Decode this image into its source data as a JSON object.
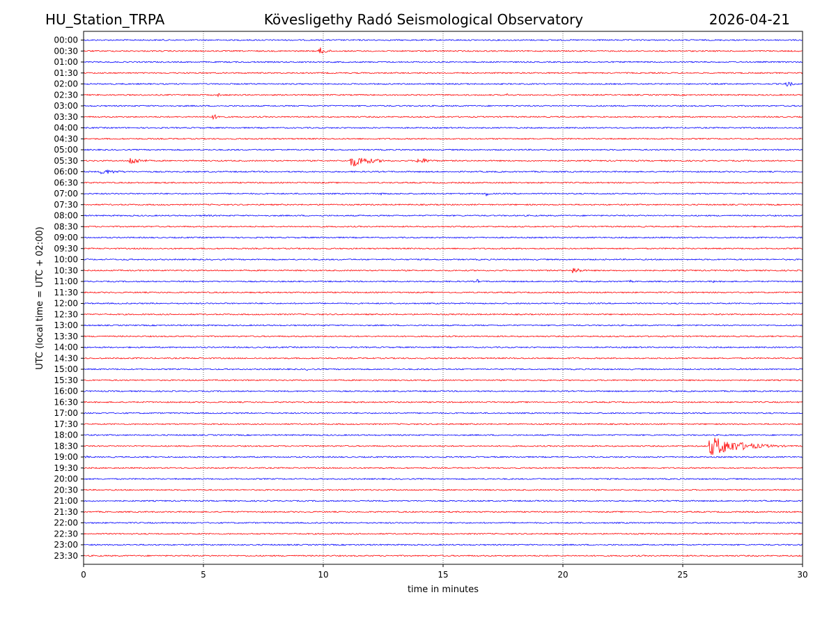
{
  "header": {
    "station": "HU_Station_TRPA",
    "observatory": "Kövesligethy Radó Seismological Observatory",
    "date": "2026-04-21"
  },
  "chart_data": {
    "type": "line",
    "title": "Kövesligethy Radó Seismological Observatory",
    "xlabel": "time in minutes",
    "ylabel": "UTC (local time = UTC + 02:00)",
    "xlim": [
      0,
      30
    ],
    "xticks": [
      "0",
      "5",
      "10",
      "15",
      "20",
      "25",
      "30"
    ],
    "vertical_gridlines_at": [
      5,
      10,
      15,
      20,
      25
    ],
    "grid_style": "dotted",
    "series_colors": [
      "#0000ff",
      "#ff0000"
    ],
    "rows": [
      "00:00",
      "00:30",
      "01:00",
      "01:30",
      "02:00",
      "02:30",
      "03:00",
      "03:30",
      "04:00",
      "04:30",
      "05:00",
      "05:30",
      "06:00",
      "06:30",
      "07:00",
      "07:30",
      "08:00",
      "08:30",
      "09:00",
      "09:30",
      "10:00",
      "10:30",
      "11:00",
      "11:30",
      "12:00",
      "12:30",
      "13:00",
      "13:30",
      "14:00",
      "14:30",
      "15:00",
      "15:30",
      "16:00",
      "16:30",
      "17:00",
      "17:30",
      "18:00",
      "18:30",
      "19:00",
      "19:30",
      "20:00",
      "20:30",
      "21:00",
      "21:30",
      "22:00",
      "22:30",
      "23:00",
      "23:30"
    ],
    "events": [
      {
        "row": "00:00",
        "start_min": 3.3,
        "duration_min": 1.0,
        "amplitude": 1.2
      },
      {
        "row": "00:00",
        "start_min": 26.5,
        "duration_min": 0.6,
        "amplitude": 1.2
      },
      {
        "row": "00:30",
        "start_min": 9.8,
        "duration_min": 1.0,
        "amplitude": 5.5
      },
      {
        "row": "02:00",
        "start_min": 6.7,
        "duration_min": 0.4,
        "amplitude": 1.5
      },
      {
        "row": "02:00",
        "start_min": 29.3,
        "duration_min": 0.7,
        "amplitude": 5.0
      },
      {
        "row": "02:30",
        "start_min": 0.0,
        "duration_min": 0.4,
        "amplitude": 2.0
      },
      {
        "row": "02:30",
        "start_min": 5.6,
        "duration_min": 0.5,
        "amplitude": 3.0
      },
      {
        "row": "02:30",
        "start_min": 17.6,
        "duration_min": 0.5,
        "amplitude": 2.5
      },
      {
        "row": "03:30",
        "start_min": 5.3,
        "duration_min": 1.5,
        "amplitude": 3.5
      },
      {
        "row": "05:30",
        "start_min": 1.9,
        "duration_min": 1.5,
        "amplitude": 5.5
      },
      {
        "row": "05:30",
        "start_min": 11.1,
        "duration_min": 2.5,
        "amplitude": 8.0
      },
      {
        "row": "05:30",
        "start_min": 13.9,
        "duration_min": 1.8,
        "amplitude": 4.0
      },
      {
        "row": "06:00",
        "start_min": 0.7,
        "duration_min": 2.5,
        "amplitude": 3.5
      },
      {
        "row": "07:00",
        "start_min": 12.4,
        "duration_min": 0.4,
        "amplitude": 5.0
      },
      {
        "row": "07:00",
        "start_min": 16.8,
        "duration_min": 0.3,
        "amplitude": 5.0
      },
      {
        "row": "08:00",
        "start_min": 5.0,
        "duration_min": 1.5,
        "amplitude": 1.6
      },
      {
        "row": "10:00",
        "start_min": 1.8,
        "duration_min": 0.8,
        "amplitude": 1.4
      },
      {
        "row": "10:30",
        "start_min": 20.4,
        "duration_min": 1.0,
        "amplitude": 5.0
      },
      {
        "row": "11:00",
        "start_min": 16.4,
        "duration_min": 0.3,
        "amplitude": 3.5
      },
      {
        "row": "11:00",
        "start_min": 22.8,
        "duration_min": 0.5,
        "amplitude": 2.0
      },
      {
        "row": "11:00",
        "start_min": 26.2,
        "duration_min": 0.4,
        "amplitude": 4.0
      },
      {
        "row": "15:00",
        "start_min": 9.3,
        "duration_min": 0.8,
        "amplitude": 1.8
      },
      {
        "row": "18:30",
        "start_min": 26.1,
        "duration_min": 3.9,
        "amplitude": 13.0
      },
      {
        "row": "19:00",
        "start_min": 0.0,
        "duration_min": 1.2,
        "amplitude": 1.8
      },
      {
        "row": "23:30",
        "start_min": 6.9,
        "duration_min": 0.3,
        "amplitude": 1.5
      }
    ]
  }
}
